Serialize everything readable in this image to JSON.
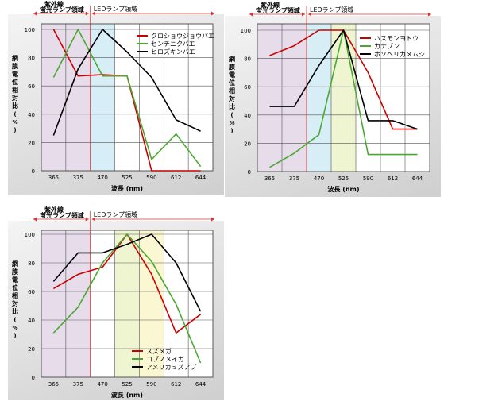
{
  "colors": {
    "red": "#cc0000",
    "green": "#4aa832",
    "black": "#000000",
    "uv": "#e6dcea",
    "blue": "#d7eef7",
    "yellowgreen": "#eef5d0",
    "yellow": "#fbf7d2"
  },
  "region_labels": {
    "uv_line1": "紫外線",
    "uv_line2": "蛍光ランプ領域",
    "led": "LEDランプ領域"
  },
  "chart_data": [
    {
      "type": "line",
      "xlabel": "波長 (nm)",
      "ylabel": "網膜電位相対比(%)",
      "ylim": [
        0,
        100
      ],
      "yticks": [
        0,
        20,
        40,
        60,
        80,
        100
      ],
      "categories": [
        "365",
        "375",
        "470",
        "525",
        "590",
        "612",
        "644"
      ],
      "bands": [
        {
          "from": 0,
          "to": 2,
          "color": "uv"
        },
        {
          "from": 2,
          "to": 3,
          "color": "blue"
        }
      ],
      "legend_position": "top-right",
      "series": [
        {
          "name": "クロショウジョウバエ",
          "color": "red",
          "values": [
            100,
            67,
            68,
            67,
            0,
            0,
            0
          ]
        },
        {
          "name": "センチニクバエ",
          "color": "green",
          "values": [
            66,
            100,
            67,
            67,
            8,
            26,
            3
          ]
        },
        {
          "name": "ヒロズキンバエ",
          "color": "black",
          "values": [
            25,
            72,
            100,
            84,
            66,
            36,
            28
          ]
        }
      ]
    },
    {
      "type": "line",
      "xlabel": "波長 (nm)",
      "ylabel": "網膜電位相対比(%)",
      "ylim": [
        0,
        100
      ],
      "yticks": [
        0,
        20,
        40,
        60,
        80,
        100
      ],
      "categories": [
        "365",
        "375",
        "470",
        "525",
        "590",
        "612",
        "644"
      ],
      "bands": [
        {
          "from": 0,
          "to": 2,
          "color": "uv"
        },
        {
          "from": 2,
          "to": 3,
          "color": "blue"
        },
        {
          "from": 3,
          "to": 4,
          "color": "yellowgreen"
        }
      ],
      "legend_position": "top-right",
      "series": [
        {
          "name": "ハスモンヨトウ",
          "color": "red",
          "values": [
            82,
            89,
            100,
            100,
            70,
            30,
            30
          ]
        },
        {
          "name": "カナブン",
          "color": "green",
          "values": [
            3,
            13,
            26,
            100,
            12,
            12,
            12
          ]
        },
        {
          "name": "ホソヘリカメムシ",
          "color": "black",
          "values": [
            46,
            46,
            75,
            100,
            36,
            36,
            30
          ]
        }
      ]
    },
    {
      "type": "line",
      "xlabel": "波長 (nm)",
      "ylabel": "網膜電位相対比(%)",
      "ylim": [
        0,
        100
      ],
      "yticks": [
        0,
        20,
        40,
        60,
        80,
        100
      ],
      "categories": [
        "365",
        "375",
        "470",
        "525",
        "590",
        "612",
        "644"
      ],
      "bands": [
        {
          "from": 0,
          "to": 2,
          "color": "uv"
        },
        {
          "from": 3,
          "to": 4,
          "color": "yellowgreen"
        },
        {
          "from": 4,
          "to": 5,
          "color": "yellow"
        }
      ],
      "legend_position": "bottom-right",
      "series": [
        {
          "name": "スズメガ",
          "color": "red",
          "values": [
            62,
            72,
            77,
            100,
            72,
            31,
            44
          ]
        },
        {
          "name": "コブノメイガ",
          "color": "green",
          "values": [
            31,
            49,
            80,
            100,
            81,
            51,
            10
          ]
        },
        {
          "name": "アメリカミズアブ",
          "color": "black",
          "values": [
            67,
            87,
            87,
            93,
            100,
            80,
            46
          ]
        }
      ]
    }
  ]
}
